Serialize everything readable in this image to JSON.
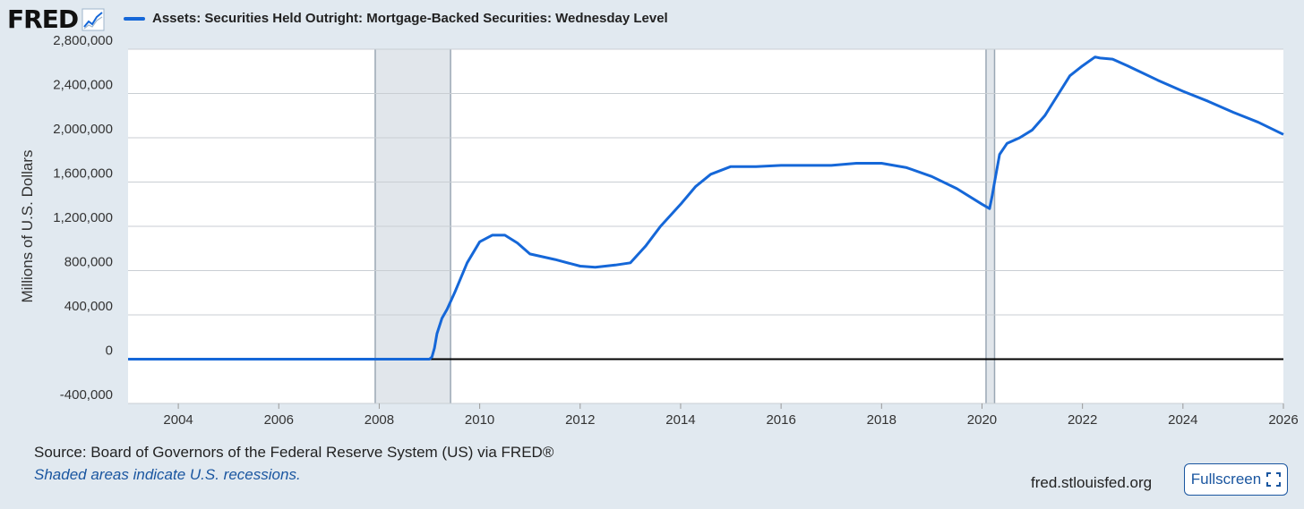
{
  "header": {
    "logo_text": "FRED",
    "logo_icon": "trend-line-icon"
  },
  "chart_data": {
    "type": "line",
    "title": "Assets: Securities Held Outright: Mortgage-Backed Securities: Wednesday Level",
    "xlabel": "",
    "ylabel": "Millions of U.S. Dollars",
    "xlim": [
      2003.0,
      2026.0
    ],
    "ylim": [
      -400000,
      2800000
    ],
    "x_ticks": [
      "2004",
      "2006",
      "2008",
      "2010",
      "2012",
      "2014",
      "2016",
      "2018",
      "2020",
      "2022",
      "2024",
      "2026"
    ],
    "y_ticks": [
      "-400,000",
      "0",
      "400,000",
      "800,000",
      "1,200,000",
      "1,600,000",
      "2,000,000",
      "2,400,000",
      "2,800,000"
    ],
    "grid": true,
    "recessions": [
      [
        2007.92,
        2009.42
      ],
      [
        2020.08,
        2020.25
      ]
    ],
    "series": [
      {
        "name": "Assets: Securities Held Outright: Mortgage-Backed Securities: Wednesday Level",
        "color": "#1567d8",
        "x": [
          2003.0,
          2008.0,
          2009.0,
          2009.05,
          2009.1,
          2009.15,
          2009.25,
          2009.35,
          2009.5,
          2009.75,
          2010.0,
          2010.25,
          2010.5,
          2010.75,
          2011.0,
          2011.5,
          2012.0,
          2012.3,
          2012.7,
          2013.0,
          2013.3,
          2013.6,
          2014.0,
          2014.3,
          2014.6,
          2015.0,
          2015.5,
          2016.0,
          2016.5,
          2017.0,
          2017.5,
          2018.0,
          2018.5,
          2019.0,
          2019.5,
          2020.0,
          2020.15,
          2020.2,
          2020.25,
          2020.35,
          2020.5,
          2020.75,
          2021.0,
          2021.25,
          2021.5,
          2021.75,
          2022.0,
          2022.25,
          2022.35,
          2022.6,
          2022.9,
          2023.5,
          2024.0,
          2024.5,
          2025.0,
          2025.5,
          2026.0
        ],
        "y": [
          0,
          0,
          0,
          20000,
          100000,
          230000,
          370000,
          450000,
          600000,
          870000,
          1060000,
          1120000,
          1120000,
          1050000,
          950000,
          900000,
          840000,
          830000,
          850000,
          870000,
          1020000,
          1200000,
          1400000,
          1560000,
          1670000,
          1740000,
          1740000,
          1750000,
          1750000,
          1750000,
          1770000,
          1770000,
          1730000,
          1650000,
          1540000,
          1400000,
          1360000,
          1470000,
          1600000,
          1850000,
          1950000,
          2000000,
          2070000,
          2200000,
          2380000,
          2560000,
          2650000,
          2730000,
          2720000,
          2710000,
          2650000,
          2520000,
          2420000,
          2330000,
          2230000,
          2140000,
          2030000
        ]
      }
    ]
  },
  "footer": {
    "source": "Source: Board of Governors of the Federal Reserve System (US) via FRED®",
    "note": "Shaded areas indicate U.S. recessions.",
    "site": "fred.stlouisfed.org",
    "fullscreen_label": "Fullscreen",
    "fullscreen_icon": "expand-icon"
  }
}
